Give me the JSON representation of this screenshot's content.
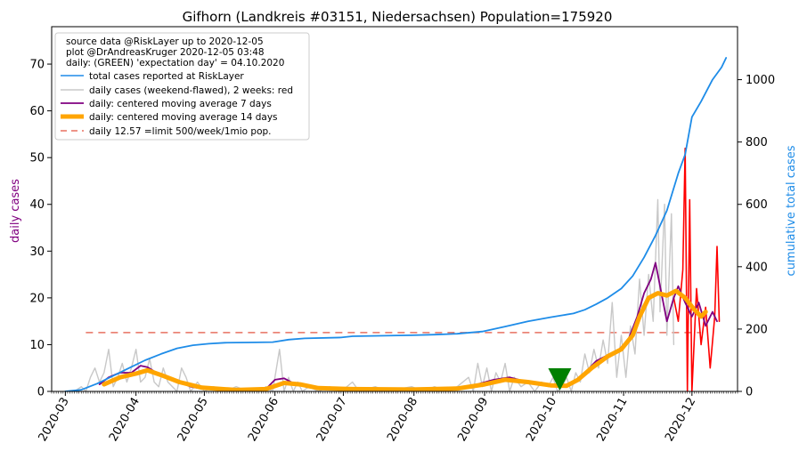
{
  "chart_data": {
    "type": "line",
    "title": "Gifhorn (Landkreis #03151, Niedersachsen) Population=175920",
    "ylabel_left": "daily cases",
    "ylabel_right": "cumulative total cases",
    "ylim_left": [
      0,
      78
    ],
    "ylim_right": [
      0,
      1170
    ],
    "xlim": [
      "2020-02-24",
      "2020-12-21"
    ],
    "x_ticks": [
      "2020-03",
      "2020-04",
      "2020-05",
      "2020-06",
      "2020-07",
      "2020-08",
      "2020-09",
      "2020-10",
      "2020-11",
      "2020-12"
    ],
    "y_ticks_left": [
      0,
      10,
      20,
      30,
      40,
      50,
      60,
      70
    ],
    "y_ticks_right": [
      0,
      200,
      400,
      600,
      800,
      1000
    ],
    "legend_info": [
      "source data @RiskLayer up to 2020-12-05",
      "plot @DrAndreasKruger 2020-12-05 03:48",
      "daily: (GREEN) 'expectation day' = 04.10.2020"
    ],
    "legend": [
      {
        "label": "total cases reported at RiskLayer",
        "color": "#1e8ce8",
        "style": "solid"
      },
      {
        "label": "daily cases (weekend-flawed), 2 weeks: red",
        "color": "#c8c8c8",
        "style": "solid"
      },
      {
        "label": "daily: centered moving average 7 days",
        "color": "#800080",
        "style": "solid"
      },
      {
        "label": "daily: centered moving average 14 days",
        "color": "#ffa500",
        "style": "thick"
      },
      {
        "label": "daily 12.57 =limit 500/week/1mio pop.",
        "color": "#e87060",
        "style": "dashed"
      }
    ],
    "legend_position": "top-left",
    "limit_line": {
      "y": 12.57,
      "x_start": "2020-03-10",
      "x_end": "2020-12-05"
    },
    "expectation_day": "2020-10-04",
    "series": [
      {
        "name": "total cases reported at RiskLayer",
        "axis": "right",
        "color": "#1e8ce8",
        "points": [
          [
            "2020-03-01",
            0
          ],
          [
            "2020-03-08",
            5
          ],
          [
            "2020-03-15",
            25
          ],
          [
            "2020-03-22",
            50
          ],
          [
            "2020-03-29",
            75
          ],
          [
            "2020-04-05",
            100
          ],
          [
            "2020-04-12",
            120
          ],
          [
            "2020-04-19",
            138
          ],
          [
            "2020-04-26",
            148
          ],
          [
            "2020-05-03",
            153
          ],
          [
            "2020-05-10",
            156
          ],
          [
            "2020-05-20",
            157
          ],
          [
            "2020-05-31",
            158
          ],
          [
            "2020-06-07",
            166
          ],
          [
            "2020-06-14",
            170
          ],
          [
            "2020-06-30",
            173
          ],
          [
            "2020-07-05",
            177
          ],
          [
            "2020-07-31",
            180
          ],
          [
            "2020-08-10",
            182
          ],
          [
            "2020-08-20",
            185
          ],
          [
            "2020-08-31",
            192
          ],
          [
            "2020-09-10",
            208
          ],
          [
            "2020-09-20",
            225
          ],
          [
            "2020-09-30",
            238
          ],
          [
            "2020-10-05",
            244
          ],
          [
            "2020-10-10",
            250
          ],
          [
            "2020-10-15",
            262
          ],
          [
            "2020-10-20",
            280
          ],
          [
            "2020-10-25",
            300
          ],
          [
            "2020-10-31",
            330
          ],
          [
            "2020-11-05",
            370
          ],
          [
            "2020-11-10",
            430
          ],
          [
            "2020-11-15",
            500
          ],
          [
            "2020-11-20",
            580
          ],
          [
            "2020-11-25",
            700
          ],
          [
            "2020-11-28",
            760
          ],
          [
            "2020-12-01",
            880
          ],
          [
            "2020-12-05",
            930
          ],
          [
            "2020-12-10",
            1000
          ],
          [
            "2020-12-14",
            1040
          ],
          [
            "2020-12-16",
            1070
          ]
        ]
      },
      {
        "name": "daily cases (weekend-flawed), 2 weeks: red",
        "axis": "left",
        "color": "#c8c8c8",
        "points": [
          [
            "2020-03-01",
            0
          ],
          [
            "2020-03-05",
            0
          ],
          [
            "2020-03-08",
            1
          ],
          [
            "2020-03-10",
            0
          ],
          [
            "2020-03-12",
            3
          ],
          [
            "2020-03-14",
            5
          ],
          [
            "2020-03-16",
            2
          ],
          [
            "2020-03-18",
            4
          ],
          [
            "2020-03-20",
            9
          ],
          [
            "2020-03-22",
            1
          ],
          [
            "2020-03-24",
            3
          ],
          [
            "2020-03-26",
            6
          ],
          [
            "2020-03-28",
            2
          ],
          [
            "2020-03-30",
            5
          ],
          [
            "2020-04-01",
            9
          ],
          [
            "2020-04-03",
            2
          ],
          [
            "2020-04-05",
            3
          ],
          [
            "2020-04-07",
            7
          ],
          [
            "2020-04-09",
            2
          ],
          [
            "2020-04-11",
            1
          ],
          [
            "2020-04-13",
            5
          ],
          [
            "2020-04-15",
            2
          ],
          [
            "2020-04-17",
            1
          ],
          [
            "2020-04-19",
            0
          ],
          [
            "2020-04-21",
            5
          ],
          [
            "2020-04-23",
            3
          ],
          [
            "2020-04-25",
            0
          ],
          [
            "2020-04-28",
            2
          ],
          [
            "2020-05-01",
            0
          ],
          [
            "2020-05-05",
            1
          ],
          [
            "2020-05-10",
            0
          ],
          [
            "2020-05-15",
            1
          ],
          [
            "2020-05-20",
            0
          ],
          [
            "2020-05-25",
            0
          ],
          [
            "2020-05-28",
            1
          ],
          [
            "2020-05-31",
            0
          ],
          [
            "2020-06-03",
            9
          ],
          [
            "2020-06-05",
            0
          ],
          [
            "2020-06-07",
            3
          ],
          [
            "2020-06-09",
            0
          ],
          [
            "2020-06-11",
            2
          ],
          [
            "2020-06-13",
            0
          ],
          [
            "2020-06-16",
            1
          ],
          [
            "2020-06-20",
            0
          ],
          [
            "2020-06-25",
            1
          ],
          [
            "2020-06-30",
            0
          ],
          [
            "2020-07-05",
            2
          ],
          [
            "2020-07-08",
            0
          ],
          [
            "2020-07-15",
            1
          ],
          [
            "2020-07-20",
            0
          ],
          [
            "2020-07-31",
            1
          ],
          [
            "2020-08-05",
            0
          ],
          [
            "2020-08-10",
            1
          ],
          [
            "2020-08-15",
            0
          ],
          [
            "2020-08-20",
            1
          ],
          [
            "2020-08-25",
            3
          ],
          [
            "2020-08-27",
            0
          ],
          [
            "2020-08-29",
            6
          ],
          [
            "2020-08-31",
            1
          ],
          [
            "2020-09-02",
            5
          ],
          [
            "2020-09-04",
            0
          ],
          [
            "2020-09-06",
            4
          ],
          [
            "2020-09-08",
            2
          ],
          [
            "2020-09-10",
            6
          ],
          [
            "2020-09-12",
            0
          ],
          [
            "2020-09-14",
            3
          ],
          [
            "2020-09-17",
            1
          ],
          [
            "2020-09-20",
            2
          ],
          [
            "2020-09-23",
            0
          ],
          [
            "2020-09-26",
            2
          ],
          [
            "2020-09-29",
            1
          ],
          [
            "2020-10-01",
            3
          ],
          [
            "2020-10-03",
            0
          ],
          [
            "2020-10-05",
            1
          ],
          [
            "2020-10-07",
            3
          ],
          [
            "2020-10-09",
            0
          ],
          [
            "2020-10-11",
            4
          ],
          [
            "2020-10-13",
            2
          ],
          [
            "2020-10-15",
            8
          ],
          [
            "2020-10-17",
            4
          ],
          [
            "2020-10-19",
            9
          ],
          [
            "2020-10-21",
            5
          ],
          [
            "2020-10-23",
            11
          ],
          [
            "2020-10-25",
            6
          ],
          [
            "2020-10-27",
            19
          ],
          [
            "2020-10-29",
            3
          ],
          [
            "2020-10-31",
            12
          ],
          [
            "2020-11-02",
            3
          ],
          [
            "2020-11-04",
            14
          ],
          [
            "2020-11-06",
            8
          ],
          [
            "2020-11-08",
            24
          ],
          [
            "2020-11-10",
            12
          ],
          [
            "2020-11-12",
            25
          ],
          [
            "2020-11-14",
            15
          ],
          [
            "2020-11-16",
            41
          ],
          [
            "2020-11-17",
            17
          ],
          [
            "2020-11-19",
            40
          ],
          [
            "2020-11-20",
            12
          ],
          [
            "2020-11-22",
            38
          ],
          [
            "2020-11-23",
            10
          ]
        ]
      },
      {
        "name": "daily cases: last 2 weeks",
        "axis": "left",
        "color": "#ff0000",
        "points": [
          [
            "2020-11-23",
            20
          ],
          [
            "2020-11-25",
            15
          ],
          [
            "2020-11-27",
            26
          ],
          [
            "2020-11-28",
            52
          ],
          [
            "2020-11-29",
            0
          ],
          [
            "2020-11-30",
            41
          ],
          [
            "2020-12-01",
            0
          ],
          [
            "2020-12-03",
            22
          ],
          [
            "2020-12-05",
            10
          ],
          [
            "2020-12-07",
            18
          ],
          [
            "2020-12-09",
            5
          ],
          [
            "2020-12-11",
            16
          ],
          [
            "2020-12-12",
            31
          ],
          [
            "2020-12-13",
            15
          ]
        ]
      },
      {
        "name": "daily: centered moving average 7 days",
        "axis": "left",
        "color": "#800080",
        "points": [
          [
            "2020-03-16",
            1.5
          ],
          [
            "2020-03-20",
            3
          ],
          [
            "2020-03-25",
            4
          ],
          [
            "2020-03-30",
            4
          ],
          [
            "2020-04-03",
            5.5
          ],
          [
            "2020-04-06",
            5.2
          ],
          [
            "2020-04-10",
            4
          ],
          [
            "2020-04-14",
            3
          ],
          [
            "2020-04-20",
            2
          ],
          [
            "2020-04-25",
            1
          ],
          [
            "2020-05-01",
            0.5
          ],
          [
            "2020-05-10",
            0.3
          ],
          [
            "2020-05-20",
            0.2
          ],
          [
            "2020-05-28",
            0.5
          ],
          [
            "2020-06-01",
            2.5
          ],
          [
            "2020-06-05",
            2.8
          ],
          [
            "2020-06-10",
            1.5
          ],
          [
            "2020-06-18",
            0.8
          ],
          [
            "2020-06-30",
            0.5
          ],
          [
            "2020-07-10",
            0.5
          ],
          [
            "2020-07-31",
            0.3
          ],
          [
            "2020-08-15",
            0.5
          ],
          [
            "2020-08-25",
            1
          ],
          [
            "2020-09-05",
            2.5
          ],
          [
            "2020-09-12",
            3
          ],
          [
            "2020-09-20",
            2
          ],
          [
            "2020-09-28",
            1.5
          ],
          [
            "2020-10-05",
            1.2
          ],
          [
            "2020-10-10",
            2
          ],
          [
            "2020-10-15",
            4
          ],
          [
            "2020-10-20",
            6.5
          ],
          [
            "2020-10-26",
            8
          ],
          [
            "2020-10-30",
            9
          ],
          [
            "2020-11-03",
            11
          ],
          [
            "2020-11-07",
            16
          ],
          [
            "2020-11-10",
            21
          ],
          [
            "2020-11-13",
            24
          ],
          [
            "2020-11-15",
            27.5
          ],
          [
            "2020-11-18",
            20
          ],
          [
            "2020-11-20",
            15
          ],
          [
            "2020-11-23",
            20
          ],
          [
            "2020-11-25",
            22.5
          ],
          [
            "2020-11-28",
            19
          ],
          [
            "2020-12-01",
            16
          ],
          [
            "2020-12-04",
            19
          ],
          [
            "2020-12-07",
            14
          ],
          [
            "2020-12-10",
            17
          ],
          [
            "2020-12-12",
            15
          ]
        ]
      },
      {
        "name": "daily: centered moving average 14 days",
        "axis": "left",
        "color": "#ffa500",
        "points": [
          [
            "2020-03-18",
            1.5
          ],
          [
            "2020-03-25",
            3
          ],
          [
            "2020-04-01",
            3.8
          ],
          [
            "2020-04-06",
            4.5
          ],
          [
            "2020-04-12",
            3.5
          ],
          [
            "2020-04-20",
            2
          ],
          [
            "2020-04-30",
            0.8
          ],
          [
            "2020-05-15",
            0.3
          ],
          [
            "2020-05-28",
            0.5
          ],
          [
            "2020-06-05",
            1.8
          ],
          [
            "2020-06-12",
            1.5
          ],
          [
            "2020-06-20",
            0.7
          ],
          [
            "2020-07-05",
            0.5
          ],
          [
            "2020-07-31",
            0.4
          ],
          [
            "2020-08-20",
            0.6
          ],
          [
            "2020-09-01",
            1.5
          ],
          [
            "2020-09-10",
            2.5
          ],
          [
            "2020-09-20",
            2
          ],
          [
            "2020-09-30",
            1.3
          ],
          [
            "2020-10-07",
            1.2
          ],
          [
            "2020-10-12",
            2.5
          ],
          [
            "2020-10-18",
            5
          ],
          [
            "2020-10-25",
            7.5
          ],
          [
            "2020-10-31",
            9
          ],
          [
            "2020-11-05",
            12
          ],
          [
            "2020-11-08",
            16
          ],
          [
            "2020-11-12",
            20
          ],
          [
            "2020-11-16",
            21
          ],
          [
            "2020-11-20",
            20.5
          ],
          [
            "2020-11-24",
            21.5
          ],
          [
            "2020-11-28",
            20
          ],
          [
            "2020-12-02",
            17.5
          ],
          [
            "2020-12-05",
            16
          ],
          [
            "2020-12-07",
            17
          ]
        ]
      }
    ]
  }
}
